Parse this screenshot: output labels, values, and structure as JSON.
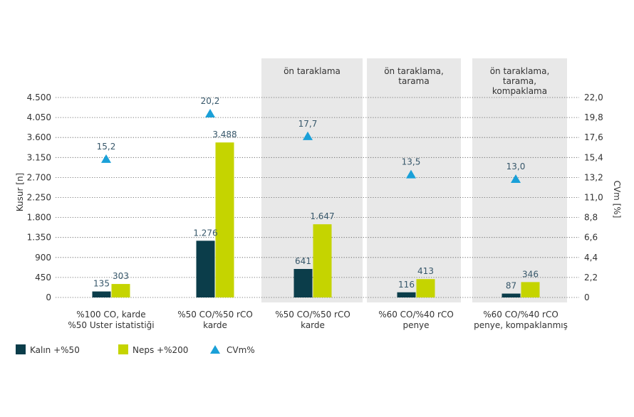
{
  "chart_data": {
    "type": "bar",
    "categories": [
      [
        "%100 CO, karde",
        "%50 Uster istatistiği"
      ],
      [
        "%50 CO/%50 rCO",
        "karde"
      ],
      [
        "%50 CO/%50 rCO",
        "karde"
      ],
      [
        "%60 CO/%40 rCO",
        "penye"
      ],
      [
        "%60 CO/%40 rCO",
        "penye, kompaklanmış"
      ]
    ],
    "panels": [
      {
        "category_index": 2,
        "label": [
          "ön taraklama"
        ]
      },
      {
        "category_index": 3,
        "label": [
          "ön taraklama,",
          "tarama"
        ]
      },
      {
        "category_index": 4,
        "label": [
          "ön taraklama,",
          "tarama,",
          "kompaklama"
        ]
      }
    ],
    "series": [
      {
        "name": "Kalın +%50",
        "type": "bar",
        "axis": "left",
        "color": "#0b3d4a",
        "values": [
          135,
          1276,
          641,
          116,
          87
        ],
        "labels": [
          "135",
          "1.276",
          "641",
          "116",
          "87"
        ]
      },
      {
        "name": "Neps +%200",
        "type": "bar",
        "axis": "left",
        "color": "#c5d400",
        "values": [
          303,
          3488,
          1647,
          413,
          346
        ],
        "labels": [
          "303",
          "3.488",
          "1.647",
          "413",
          "346"
        ]
      },
      {
        "name": "CVm%",
        "type": "marker",
        "axis": "right",
        "color": "#1aa0d8",
        "values": [
          15.2,
          20.2,
          17.7,
          13.5,
          13.0
        ],
        "labels": [
          "15,2",
          "20,2",
          "17,7",
          "13,5",
          "13,0"
        ]
      }
    ],
    "y_left": {
      "label": "Kusur [n]",
      "range": [
        0,
        4500
      ],
      "ticks": [
        0,
        450,
        900,
        1350,
        1800,
        2250,
        2700,
        3150,
        3600,
        4050,
        4500
      ],
      "tick_labels": [
        "0",
        "450",
        "900",
        "1.350",
        "1.800",
        "2.250",
        "2.700",
        "3.150",
        "3.600",
        "4.050",
        "4.500"
      ]
    },
    "y_right": {
      "label": "CVm [%]",
      "range": [
        0,
        22
      ],
      "ticks": [
        0,
        2.2,
        4.4,
        6.6,
        8.8,
        11,
        13.2,
        15.4,
        17.6,
        19.8,
        22
      ],
      "tick_labels": [
        "0",
        "2,2",
        "4,4",
        "6,6",
        "8,8",
        "11,0",
        "13,2",
        "15,4",
        "17,6",
        "19,8",
        "22,0"
      ]
    },
    "grid": "dotted-horizontal",
    "legend_position": "bottom-left"
  },
  "colors": {
    "bar_dark": "#0b3d4a",
    "bar_lime": "#c5d400",
    "marker": "#1aa0d8",
    "panel_bg": "#e8e8e8",
    "value_text": "#37576a"
  }
}
